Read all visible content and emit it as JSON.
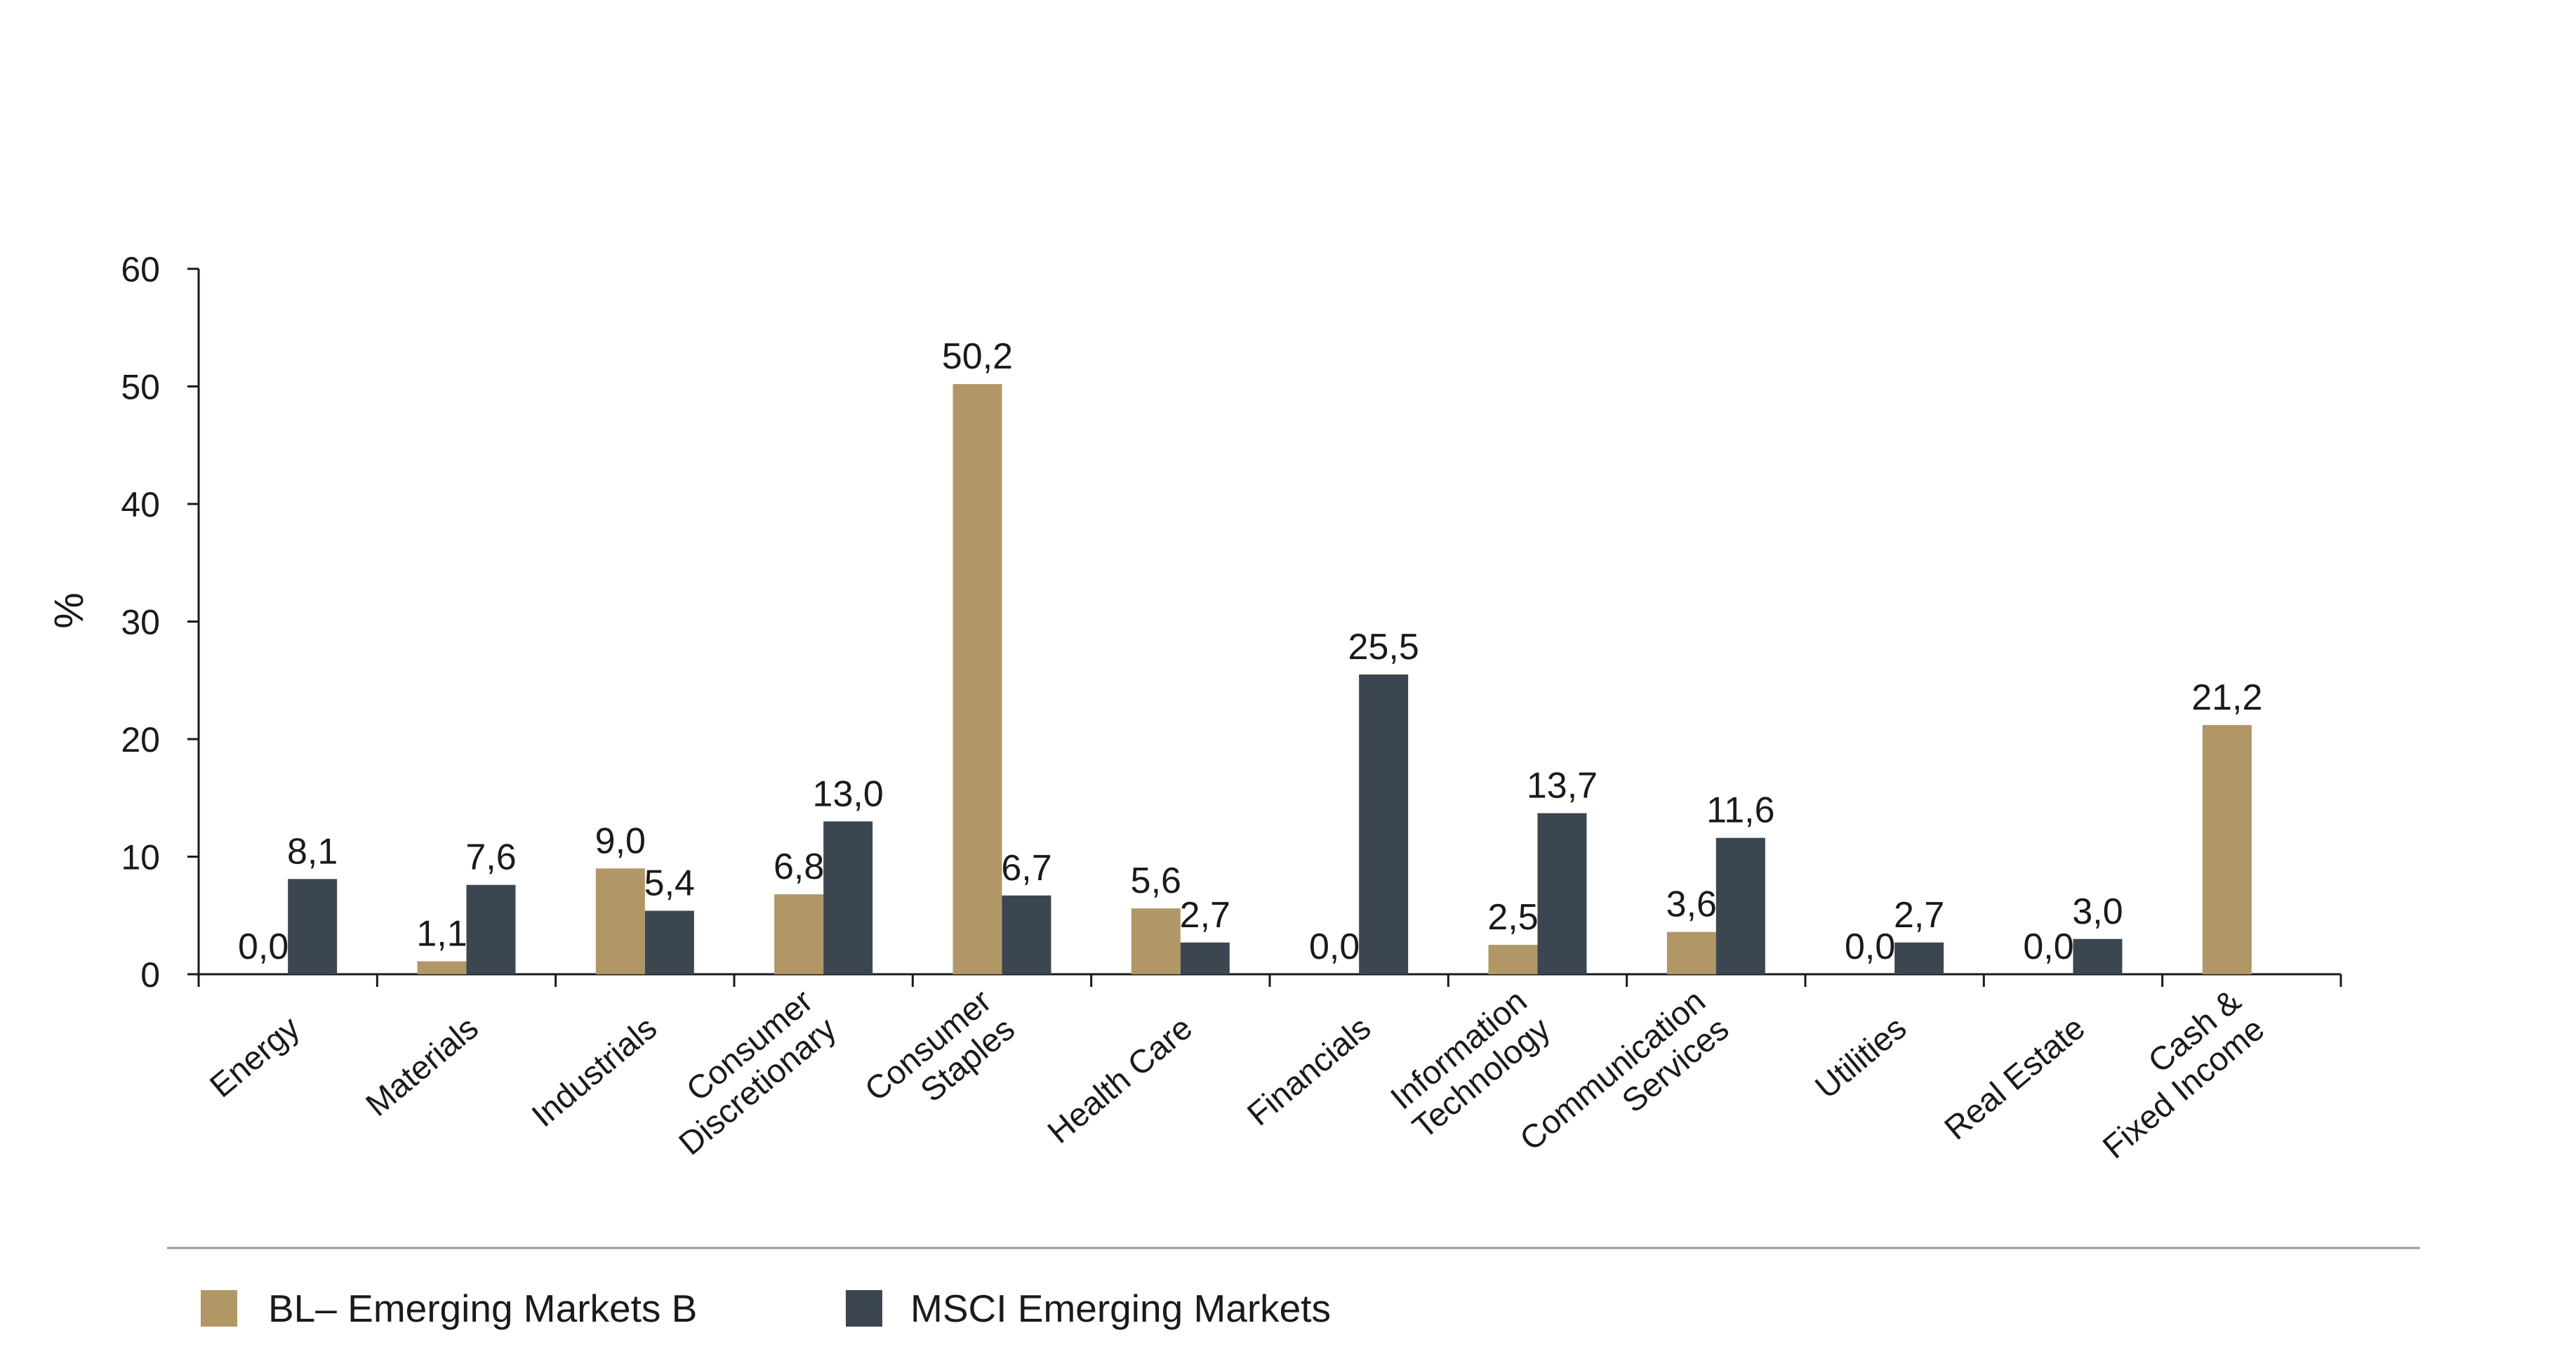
{
  "chart_data": {
    "type": "bar",
    "ylabel": "%",
    "ylim": [
      0,
      60
    ],
    "yticks": [
      "0",
      "10",
      "20",
      "30",
      "40",
      "50",
      "60"
    ],
    "ytick_values": [
      0,
      10,
      20,
      30,
      40,
      50,
      60
    ],
    "grid": false,
    "legend_position": "bottom",
    "categories": [
      [
        "Energy"
      ],
      [
        "Materials"
      ],
      [
        "Industrials"
      ],
      [
        "Consumer",
        "Discretionary"
      ],
      [
        "Consumer",
        "Staples"
      ],
      [
        "Health Care"
      ],
      [
        "Financials"
      ],
      [
        "Information",
        "Technology"
      ],
      [
        "Communication",
        "Services"
      ],
      [
        "Utilities"
      ],
      [
        "Real Estate"
      ],
      [
        "Cash &",
        "Fixed Income"
      ]
    ],
    "series": [
      {
        "name": "BL– Emerging Markets B",
        "color": "#b19766",
        "values": [
          0.0,
          1.1,
          9.0,
          6.8,
          50.2,
          5.6,
          0.0,
          2.5,
          3.6,
          0.0,
          0.0,
          21.2
        ],
        "labels": [
          "0,0",
          "1,1",
          "9,0",
          "6,8",
          "50,2",
          "5,6",
          "0,0",
          "2,5",
          "3,6",
          "0,0",
          "0,0",
          "21,2"
        ]
      },
      {
        "name": "MSCI Emerging Markets",
        "color": "#3b4650",
        "values": [
          8.1,
          7.6,
          5.4,
          13.0,
          6.7,
          2.7,
          25.5,
          13.7,
          11.6,
          2.7,
          3.0,
          null
        ],
        "labels": [
          "8,1",
          "7,6",
          "5,4",
          "13,0",
          "6,7",
          "2,7",
          "25,5",
          "13,7",
          "11,6",
          "2,7",
          "3,0",
          ""
        ]
      }
    ]
  }
}
